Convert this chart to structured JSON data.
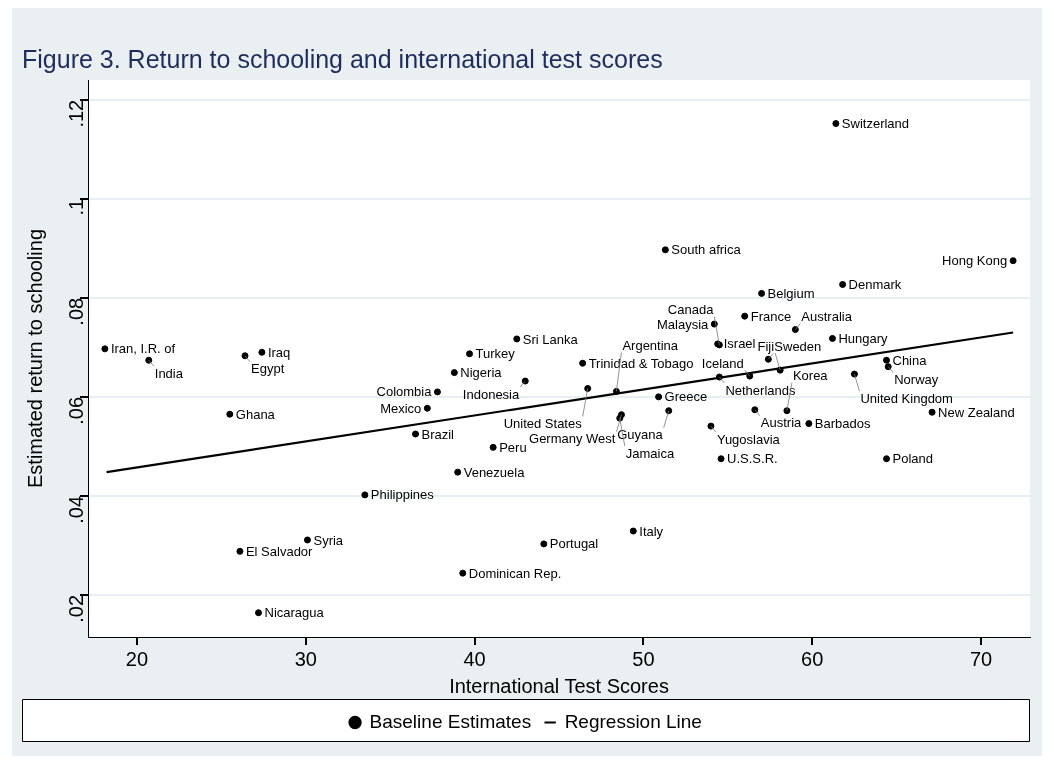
{
  "chart_data": {
    "type": "scatter",
    "title": "Figure 3. Return to schooling and international test scores",
    "xlabel": "International Test Scores",
    "ylabel": "Estimated return to schooling",
    "xlim": [
      17.1,
      72.9
    ],
    "xticks": [
      20,
      30,
      40,
      50,
      60,
      70
    ],
    "ylim": [
      0.0115,
      0.124
    ],
    "yticks": [
      {
        "value": 0.02,
        "label": ".02"
      },
      {
        "value": 0.04,
        "label": ".04"
      },
      {
        "value": 0.06,
        "label": ".06"
      },
      {
        "value": 0.08,
        "label": ".08"
      },
      {
        "value": 0.1,
        "label": ".1"
      },
      {
        "value": 0.12,
        "label": ".12"
      }
    ],
    "grid": "y",
    "legend": "bottom",
    "marker": "circle",
    "series": [
      {
        "name": "Baseline Estimates",
        "color": "#000000",
        "x": [
          18.1,
          20.7,
          26.4,
          27.4,
          25.5,
          42.5,
          39.7,
          38.8,
          43.0,
          37.8,
          37.2,
          36.5,
          41.1,
          39.0,
          33.5,
          30.1,
          26.1,
          39.3,
          27.2,
          46.4,
          46.7,
          48.4,
          50.9,
          51.5,
          48.7,
          48.6,
          44.1,
          49.4,
          61.4,
          51.3,
          71.9,
          57.0,
          61.8,
          56.0,
          54.2,
          59.0,
          61.2,
          54.4,
          54.5,
          57.4,
          54.5,
          56.3,
          58.1,
          64.4,
          64.5,
          62.5,
          56.6,
          58.5,
          67.1,
          54.0,
          59.8,
          54.6,
          64.4
        ],
        "values": [
          0.0697,
          0.0674,
          0.0683,
          0.069,
          0.0565,
          0.0717,
          0.0687,
          0.0649,
          0.0632,
          0.061,
          0.0577,
          0.0525,
          0.0498,
          0.0448,
          0.0402,
          0.0311,
          0.0288,
          0.0244,
          0.0164,
          0.0668,
          0.0617,
          0.0611,
          0.06,
          0.0572,
          0.0564,
          0.0557,
          0.0303,
          0.0329,
          0.1152,
          0.0897,
          0.0875,
          0.0809,
          0.0827,
          0.0763,
          0.0747,
          0.0736,
          0.0718,
          0.0707,
          0.0705,
          0.0676,
          0.064,
          0.0642,
          0.0654,
          0.0674,
          0.0661,
          0.0646,
          0.0574,
          0.0572,
          0.0569,
          0.0541,
          0.0546,
          0.0475,
          0.0475
        ]
      },
      {
        "name": "Regression Line",
        "type": "line",
        "marker": "none",
        "color": "#000000",
        "x": [
          18.2,
          71.9
        ],
        "values": [
          0.0448,
          0.073
        ]
      }
    ],
    "annotations": [
      {
        "text": "Iran, I.R. of",
        "x": 18.1,
        "y": 0.0697
      },
      {
        "text": "India",
        "x": 20.7,
        "y": 0.0674
      },
      {
        "text": "Egypt",
        "x": 26.4,
        "y": 0.0683
      },
      {
        "text": "Iraq",
        "x": 27.4,
        "y": 0.069
      },
      {
        "text": "Ghana",
        "x": 25.5,
        "y": 0.0565
      },
      {
        "text": "Sri Lanka",
        "x": 42.5,
        "y": 0.0717
      },
      {
        "text": "Turkey",
        "x": 39.7,
        "y": 0.0687
      },
      {
        "text": "Nigeria",
        "x": 38.8,
        "y": 0.0649
      },
      {
        "text": "Indonesia",
        "x": 43.0,
        "y": 0.0632
      },
      {
        "text": "Colombia",
        "x": 37.8,
        "y": 0.061
      },
      {
        "text": "Mexico",
        "x": 37.2,
        "y": 0.0577
      },
      {
        "text": "Brazil",
        "x": 36.5,
        "y": 0.0525
      },
      {
        "text": "Peru",
        "x": 41.1,
        "y": 0.0498
      },
      {
        "text": "Venezuela",
        "x": 39.0,
        "y": 0.0448
      },
      {
        "text": "Philippines",
        "x": 33.5,
        "y": 0.0402
      },
      {
        "text": "Syria",
        "x": 30.1,
        "y": 0.0311
      },
      {
        "text": "El Salvador",
        "x": 26.1,
        "y": 0.0288
      },
      {
        "text": "Dominican Rep.",
        "x": 39.3,
        "y": 0.0244
      },
      {
        "text": "Nicaragua",
        "x": 27.2,
        "y": 0.0164
      },
      {
        "text": "Trinidad & Tobago",
        "x": 46.4,
        "y": 0.0668
      },
      {
        "text": "United States",
        "x": 46.7,
        "y": 0.0617
      },
      {
        "text": "Argentina",
        "x": 48.4,
        "y": 0.0611
      },
      {
        "text": "Greece",
        "x": 50.9,
        "y": 0.06
      },
      {
        "text": "Guyana",
        "x": 51.5,
        "y": 0.0572
      },
      {
        "text": "Germany West",
        "x": 48.7,
        "y": 0.0564
      },
      {
        "text": "Jamaica",
        "x": 48.6,
        "y": 0.0557
      },
      {
        "text": "Portugal",
        "x": 44.1,
        "y": 0.0303
      },
      {
        "text": "Italy",
        "x": 49.4,
        "y": 0.0329
      },
      {
        "text": "Switzerland",
        "x": 61.4,
        "y": 0.1152
      },
      {
        "text": "South africa",
        "x": 51.3,
        "y": 0.0897
      },
      {
        "text": "Hong Kong",
        "x": 71.9,
        "y": 0.0875
      },
      {
        "text": "Belgium",
        "x": 57.0,
        "y": 0.0809
      },
      {
        "text": "Denmark",
        "x": 61.8,
        "y": 0.0827
      },
      {
        "text": "France",
        "x": 56.0,
        "y": 0.0763
      },
      {
        "text": "Malaysia",
        "x": 54.2,
        "y": 0.0747
      },
      {
        "text": "Australia",
        "x": 59.0,
        "y": 0.0736
      },
      {
        "text": "Hungary",
        "x": 61.2,
        "y": 0.0718
      },
      {
        "text": "Israel",
        "x": 54.4,
        "y": 0.0707
      },
      {
        "text": "Canada",
        "x": 54.5,
        "y": 0.0705
      },
      {
        "text": "Sweden",
        "x": 57.4,
        "y": 0.0676
      },
      {
        "text": "Netherlands",
        "x": 54.5,
        "y": 0.064
      },
      {
        "text": "Iceland",
        "x": 56.3,
        "y": 0.0642
      },
      {
        "text": "Fiji",
        "x": 58.1,
        "y": 0.0654
      },
      {
        "text": "China",
        "x": 64.4,
        "y": 0.0674
      },
      {
        "text": "Norway",
        "x": 64.5,
        "y": 0.0661
      },
      {
        "text": "United Kingdom",
        "x": 62.5,
        "y": 0.0646
      },
      {
        "text": "Austria",
        "x": 56.6,
        "y": 0.0574
      },
      {
        "text": "Korea",
        "x": 58.5,
        "y": 0.0572
      },
      {
        "text": "New Zealand",
        "x": 67.1,
        "y": 0.0569
      },
      {
        "text": "Yugoslavia",
        "x": 54.0,
        "y": 0.0541
      },
      {
        "text": "Barbados",
        "x": 59.8,
        "y": 0.0546
      },
      {
        "text": "U.S.S.R.",
        "x": 54.6,
        "y": 0.0475
      },
      {
        "text": "Poland",
        "x": 64.4,
        "y": 0.0475
      }
    ]
  }
}
